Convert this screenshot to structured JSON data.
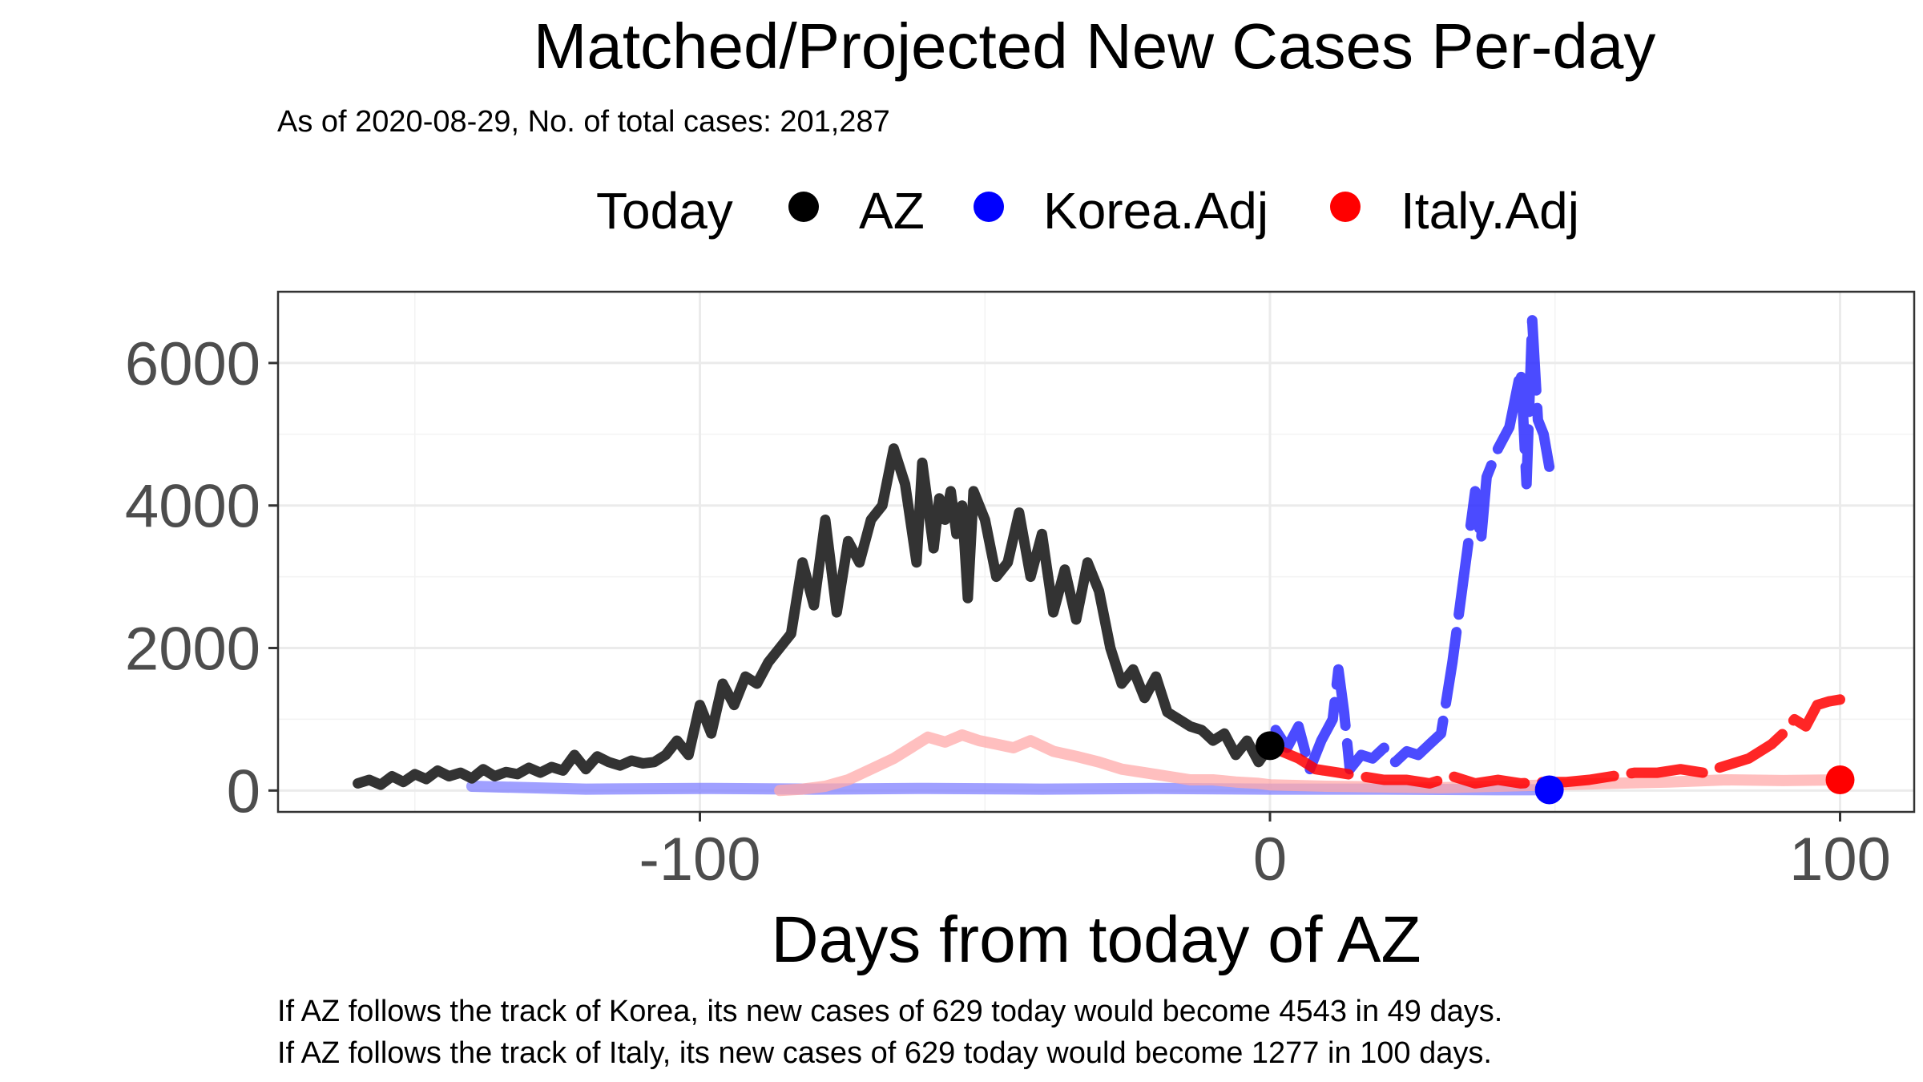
{
  "chart_data": {
    "type": "line",
    "title": "Matched/Projected New Cases Per-day",
    "subtitle": "As of 2020-08-29, No. of total cases: 201,287",
    "xlabel": "Days from today of AZ",
    "ylabel": "",
    "xlim": [
      -174,
      113
    ],
    "ylim": [
      -300,
      7000
    ],
    "x_ticks": [
      -100,
      0,
      100
    ],
    "x_tick_labels": [
      "-100",
      "0",
      "100"
    ],
    "y_ticks": [
      0,
      2000,
      4000,
      6000
    ],
    "y_tick_labels": [
      "0",
      "2000",
      "4000",
      "6000"
    ],
    "grid": true,
    "legend": {
      "title": "Today",
      "position": "top",
      "entries": [
        {
          "label": "AZ",
          "color": "#000000"
        },
        {
          "label": "Korea.Adj",
          "color": "#0000ff"
        },
        {
          "label": "Italy.Adj",
          "color": "#ff0000"
        }
      ]
    },
    "series": [
      {
        "name": "AZ",
        "role": "observed",
        "color": "#333333",
        "x": [
          -160,
          -158,
          -156,
          -154,
          -152,
          -150,
          -148,
          -146,
          -144,
          -142,
          -140,
          -138,
          -136,
          -134,
          -132,
          -130,
          -128,
          -126,
          -124,
          -122,
          -120,
          -118,
          -116,
          -114,
          -112,
          -110,
          -108,
          -106,
          -104,
          -102,
          -100,
          -98,
          -96,
          -94,
          -92,
          -90,
          -88,
          -86,
          -84,
          -82,
          -80,
          -78,
          -76,
          -74,
          -72,
          -70,
          -68,
          -66,
          -64,
          -62,
          -61,
          -60,
          -59,
          -58,
          -57,
          -56,
          -55,
          -54,
          -53,
          -52,
          -50,
          -48,
          -46,
          -44,
          -42,
          -40,
          -38,
          -36,
          -34,
          -32,
          -30,
          -28,
          -26,
          -24,
          -22,
          -20,
          -18,
          -16,
          -14,
          -12,
          -10,
          -8,
          -6,
          -4,
          -2,
          0
        ],
        "y": [
          100,
          150,
          80,
          200,
          120,
          230,
          160,
          280,
          200,
          250,
          170,
          300,
          200,
          260,
          230,
          320,
          250,
          330,
          280,
          500,
          300,
          480,
          400,
          350,
          420,
          380,
          400,
          500,
          700,
          500,
          1200,
          800,
          1500,
          1200,
          1600,
          1500,
          1800,
          2000,
          2200,
          3200,
          2600,
          3800,
          2500,
          3500,
          3200,
          3800,
          4000,
          4800,
          4300,
          3200,
          4600,
          4000,
          3400,
          4100,
          3800,
          4200,
          3600,
          4000,
          2700,
          4200,
          3800,
          3000,
          3200,
          3900,
          3000,
          3600,
          2500,
          3100,
          2400,
          3200,
          2800,
          2000,
          1500,
          1700,
          1300,
          1600,
          1100,
          1000,
          900,
          850,
          700,
          800,
          500,
          700,
          400,
          629
        ]
      },
      {
        "name": "Korea.Adj",
        "role": "projection",
        "color": "#2b2bff",
        "dash": true,
        "x": [
          1,
          3,
          5,
          7,
          9,
          11,
          12,
          13,
          14,
          16,
          18,
          20,
          22,
          24,
          26,
          28,
          30,
          32,
          34,
          36,
          37,
          38,
          40,
          42,
          44,
          45,
          46,
          47,
          48,
          49
        ],
        "y": [
          850,
          600,
          900,
          300,
          700,
          1000,
          1700,
          1100,
          300,
          500,
          450,
          600,
          400,
          550,
          500,
          650,
          800,
          1800,
          3000,
          4200,
          3500,
          4400,
          4800,
          5100,
          5900,
          4300,
          6600,
          5200,
          5000,
          4543
        ]
      },
      {
        "name": "Italy.Adj",
        "role": "projection",
        "color": "#ff0000",
        "dash": true,
        "x": [
          2,
          5,
          8,
          12,
          16,
          20,
          24,
          28,
          32,
          36,
          40,
          44,
          48,
          52,
          56,
          60,
          64,
          68,
          72,
          76,
          80,
          84,
          88,
          90,
          92,
          94,
          96,
          98,
          100
        ],
        "y": [
          550,
          450,
          300,
          250,
          200,
          150,
          150,
          100,
          200,
          100,
          150,
          100,
          120,
          120,
          150,
          200,
          250,
          250,
          300,
          250,
          350,
          450,
          650,
          800,
          1000,
          900,
          1200,
          1250,
          1277
        ]
      },
      {
        "name": "Korea.Adj",
        "role": "matched",
        "color": "#8080ff",
        "x": [
          -140,
          -120,
          -100,
          -80,
          -60,
          -40,
          -20,
          0,
          20,
          40,
          49
        ],
        "y": [
          60,
          20,
          30,
          20,
          30,
          20,
          30,
          20,
          20,
          10,
          10
        ]
      },
      {
        "name": "Italy.Adj",
        "role": "matched",
        "color": "#ffaaaa",
        "x": [
          -86,
          -82,
          -78,
          -74,
          -70,
          -66,
          -63,
          -60,
          -57,
          -54,
          -51,
          -48,
          -45,
          -42,
          -38,
          -34,
          -30,
          -26,
          -22,
          -18,
          -14,
          -10,
          -6,
          -2,
          0,
          10,
          20,
          30,
          40,
          50,
          60,
          70,
          80,
          90,
          100
        ],
        "y": [
          0,
          20,
          60,
          150,
          300,
          450,
          600,
          750,
          680,
          780,
          700,
          650,
          600,
          700,
          550,
          480,
          400,
          300,
          250,
          200,
          150,
          150,
          120,
          100,
          80,
          60,
          50,
          40,
          60,
          80,
          100,
          120,
          150,
          140,
          150
        ]
      }
    ],
    "today_points": [
      {
        "name": "AZ",
        "x": 0,
        "y": 629,
        "color": "#000000"
      },
      {
        "name": "Korea.Adj",
        "x": 49,
        "y": 10,
        "color": "#0000ff"
      },
      {
        "name": "Italy.Adj",
        "x": 100,
        "y": 150,
        "color": "#ff0000"
      }
    ],
    "captions": [
      "If AZ follows the track of Korea, its new cases of 629 today would become 4543 in 49 days.",
      "If AZ follows the track of Italy, its new cases of 629 today would become 1277 in 100 days."
    ]
  }
}
